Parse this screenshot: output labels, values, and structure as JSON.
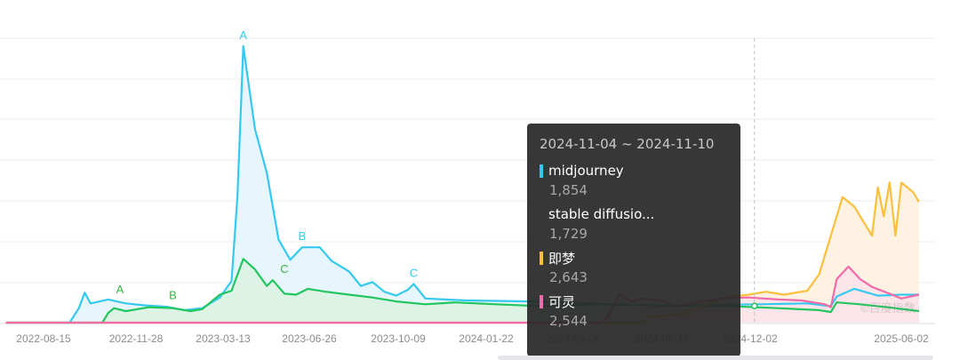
{
  "chart_data": {
    "type": "area",
    "x_ticks": [
      "2022-08-15",
      "2022-11-28",
      "2023-03-13",
      "2023-06-26",
      "2023-10-09",
      "2024-01-22",
      "2024-05-06",
      "2024-08-19",
      "2024-12-02",
      "2025-06-02"
    ],
    "series": [
      {
        "name": "midjourney",
        "color": "#36c9f0",
        "fill": "#dff3fb",
        "points": [
          [
            "2022-07-01",
            0
          ],
          [
            "2022-09-15",
            0
          ],
          [
            "2022-09-26",
            1500
          ],
          [
            "2022-10-03",
            3100
          ],
          [
            "2022-10-10",
            2000
          ],
          [
            "2022-10-31",
            2400
          ],
          [
            "2022-11-21",
            2000
          ],
          [
            "2022-12-12",
            1800
          ],
          [
            "2023-01-09",
            1650
          ],
          [
            "2023-01-30",
            1300
          ],
          [
            "2023-02-20",
            1500
          ],
          [
            "2023-03-13",
            2600
          ],
          [
            "2023-03-27",
            4300
          ],
          [
            "2023-04-03",
            13000
          ],
          [
            "2023-04-10",
            28600
          ],
          [
            "2023-04-24",
            20000
          ],
          [
            "2023-05-08",
            15500
          ],
          [
            "2023-05-22",
            8600
          ],
          [
            "2023-06-05",
            6500
          ],
          [
            "2023-06-19",
            7800
          ],
          [
            "2023-07-10",
            7800
          ],
          [
            "2023-07-24",
            6400
          ],
          [
            "2023-08-14",
            5300
          ],
          [
            "2023-08-28",
            3800
          ],
          [
            "2023-09-11",
            4200
          ],
          [
            "2023-09-25",
            3200
          ],
          [
            "2023-10-09",
            2800
          ],
          [
            "2023-10-23",
            3400
          ],
          [
            "2023-10-30",
            4000
          ],
          [
            "2023-11-13",
            2500
          ],
          [
            "2024-01-01",
            2300
          ],
          [
            "2024-03-18",
            2200
          ],
          [
            "2024-05-06",
            2100
          ],
          [
            "2024-06-24",
            1900
          ],
          [
            "2024-08-05",
            1800
          ],
          [
            "2024-09-16",
            1750
          ],
          [
            "2024-11-04",
            1854
          ],
          [
            "2024-12-16",
            1900
          ],
          [
            "2025-02-10",
            2000
          ],
          [
            "2025-03-10",
            1700
          ],
          [
            "2025-03-17",
            2700
          ],
          [
            "2025-04-07",
            3500
          ],
          [
            "2025-05-05",
            2800
          ],
          [
            "2025-06-02",
            2900
          ],
          [
            "2025-06-23",
            2900
          ]
        ]
      },
      {
        "name": "stable diffusio...",
        "color": "#22c55e",
        "fill": "#d9f2df",
        "points": [
          [
            "2022-07-01",
            0
          ],
          [
            "2022-10-24",
            0
          ],
          [
            "2022-10-31",
            1000
          ],
          [
            "2022-11-07",
            1500
          ],
          [
            "2022-11-21",
            1200
          ],
          [
            "2022-12-19",
            1600
          ],
          [
            "2023-01-16",
            1500
          ],
          [
            "2023-02-06",
            1200
          ],
          [
            "2023-02-20",
            1400
          ],
          [
            "2023-03-13",
            2900
          ],
          [
            "2023-03-27",
            3300
          ],
          [
            "2023-04-10",
            6600
          ],
          [
            "2023-04-24",
            5500
          ],
          [
            "2023-05-08",
            3800
          ],
          [
            "2023-05-15",
            4400
          ],
          [
            "2023-05-29",
            3000
          ],
          [
            "2023-06-12",
            2900
          ],
          [
            "2023-06-26",
            3500
          ],
          [
            "2023-07-17",
            3200
          ],
          [
            "2023-08-14",
            2900
          ],
          [
            "2023-09-11",
            2600
          ],
          [
            "2023-10-09",
            2200
          ],
          [
            "2023-11-13",
            1900
          ],
          [
            "2023-12-18",
            2100
          ],
          [
            "2024-02-05",
            1900
          ],
          [
            "2024-04-01",
            1700
          ],
          [
            "2024-06-03",
            1900
          ],
          [
            "2024-08-05",
            1800
          ],
          [
            "2024-11-04",
            1729
          ],
          [
            "2025-01-06",
            1500
          ],
          [
            "2025-02-24",
            1300
          ],
          [
            "2025-03-10",
            1100
          ],
          [
            "2025-03-17",
            2100
          ],
          [
            "2025-04-14",
            1900
          ],
          [
            "2025-05-26",
            1500
          ],
          [
            "2025-06-23",
            1200
          ]
        ]
      },
      {
        "name": "即梦",
        "color": "#fbbf3c",
        "fill": "#fdeed9",
        "points": [
          [
            "2022-07-01",
            0
          ],
          [
            "2024-07-29",
            0
          ],
          [
            "2024-08-05",
            600
          ],
          [
            "2024-09-16",
            900
          ],
          [
            "2024-11-04",
            2643
          ],
          [
            "2024-12-02",
            2900
          ],
          [
            "2024-12-23",
            3200
          ],
          [
            "2025-01-13",
            2900
          ],
          [
            "2025-02-10",
            3300
          ],
          [
            "2025-02-24",
            5000
          ],
          [
            "2025-03-10",
            9000
          ],
          [
            "2025-03-24",
            13000
          ],
          [
            "2025-04-07",
            12000
          ],
          [
            "2025-04-28",
            9000
          ],
          [
            "2025-05-05",
            14000
          ],
          [
            "2025-05-12",
            11000
          ],
          [
            "2025-05-19",
            14500
          ],
          [
            "2025-05-26",
            9000
          ],
          [
            "2025-06-02",
            14500
          ],
          [
            "2025-06-16",
            13500
          ],
          [
            "2025-06-23",
            12500
          ]
        ]
      },
      {
        "name": "可灵",
        "color": "#f06ba8",
        "fill": "#fce1ec",
        "points": [
          [
            "2022-07-01",
            0
          ],
          [
            "2024-06-10",
            0
          ],
          [
            "2024-06-17",
            600
          ],
          [
            "2024-07-01",
            3000
          ],
          [
            "2024-07-15",
            2200
          ],
          [
            "2024-07-29",
            2500
          ],
          [
            "2024-08-19",
            2300
          ],
          [
            "2024-09-09",
            1700
          ],
          [
            "2024-10-07",
            2200
          ],
          [
            "2024-11-04",
            2544
          ],
          [
            "2024-12-02",
            2600
          ],
          [
            "2025-01-06",
            2400
          ],
          [
            "2025-02-03",
            2300
          ],
          [
            "2025-03-03",
            1900
          ],
          [
            "2025-03-10",
            1600
          ],
          [
            "2025-03-17",
            4500
          ],
          [
            "2025-03-31",
            5800
          ],
          [
            "2025-04-14",
            4500
          ],
          [
            "2025-04-28",
            3700
          ],
          [
            "2025-05-19",
            3000
          ],
          [
            "2025-06-02",
            2500
          ],
          [
            "2025-06-23",
            2900
          ]
        ]
      }
    ],
    "annotations": [
      {
        "label": "A",
        "date": "2022-11-14",
        "value": 2300,
        "color": "#3cb043"
      },
      {
        "label": "B",
        "date": "2023-01-16",
        "value": 1700,
        "color": "#3cb043"
      },
      {
        "label": "A",
        "date": "2023-04-10",
        "value": 28600,
        "color": "#36c9f0"
      },
      {
        "label": "B",
        "date": "2023-06-19",
        "value": 7800,
        "color": "#36c9f0"
      },
      {
        "label": "C",
        "date": "2023-05-29",
        "value": 4400,
        "color": "#3cb043"
      },
      {
        "label": "C",
        "date": "2023-10-30",
        "value": 4000,
        "color": "#36c9f0"
      }
    ],
    "crosshair_date": "2024-12-09",
    "grid": true,
    "legend": "none"
  },
  "tooltip": {
    "range": "2024-11-04 ~ 2024-11-10",
    "items": [
      {
        "name": "midjourney",
        "value": "1,854",
        "color": "#36c9f0",
        "swatch": true
      },
      {
        "name": "stable diffusio...",
        "value": "1,729",
        "color": "#22c55e",
        "swatch": false
      },
      {
        "name": "即梦",
        "value": "2,643",
        "color": "#fbbf3c",
        "swatch": true
      },
      {
        "name": "可灵",
        "value": "2,544",
        "color": "#f06ba8",
        "swatch": true
      }
    ]
  },
  "watermark": "©百度指数"
}
